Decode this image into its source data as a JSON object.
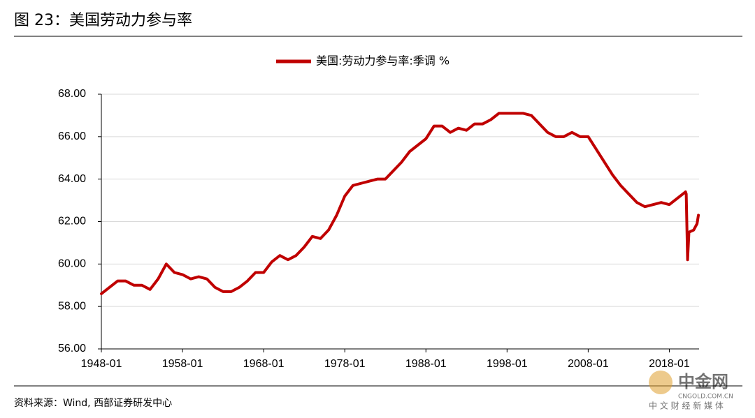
{
  "header": {
    "title": "图 23：美国劳动力参与率"
  },
  "chart_data": {
    "type": "line",
    "x": [
      "1948-01",
      "1949-01",
      "1950-01",
      "1951-01",
      "1952-01",
      "1953-01",
      "1954-01",
      "1955-01",
      "1956-01",
      "1957-01",
      "1958-01",
      "1959-01",
      "1960-01",
      "1961-01",
      "1962-01",
      "1963-01",
      "1964-01",
      "1965-01",
      "1966-01",
      "1967-01",
      "1968-01",
      "1969-01",
      "1970-01",
      "1971-01",
      "1972-01",
      "1973-01",
      "1974-01",
      "1975-01",
      "1976-01",
      "1977-01",
      "1978-01",
      "1979-01",
      "1980-01",
      "1981-01",
      "1982-01",
      "1983-01",
      "1984-01",
      "1985-01",
      "1986-01",
      "1987-01",
      "1988-01",
      "1989-01",
      "1990-01",
      "1991-01",
      "1992-01",
      "1993-01",
      "1994-01",
      "1995-01",
      "1996-01",
      "1997-01",
      "1998-01",
      "1999-01",
      "2000-01",
      "2001-01",
      "2002-01",
      "2003-01",
      "2004-01",
      "2005-01",
      "2006-01",
      "2007-01",
      "2008-01",
      "2009-01",
      "2010-01",
      "2011-01",
      "2012-01",
      "2013-01",
      "2014-01",
      "2015-01",
      "2016-01",
      "2017-01",
      "2018-01",
      "2019-01",
      "2020-01",
      "2020-02",
      "2020-04",
      "2020-06",
      "2021-01",
      "2021-06",
      "2021-08"
    ],
    "series": [
      {
        "name": "美国:劳动力参与率:季调 %",
        "color": "#c00000",
        "values": [
          58.6,
          58.9,
          59.2,
          59.2,
          59.0,
          59.0,
          58.8,
          59.3,
          60.0,
          59.6,
          59.5,
          59.3,
          59.4,
          59.3,
          58.9,
          58.7,
          58.7,
          58.9,
          59.2,
          59.6,
          59.6,
          60.1,
          60.4,
          60.2,
          60.4,
          60.8,
          61.3,
          61.2,
          61.6,
          62.3,
          63.2,
          63.7,
          63.8,
          63.9,
          64.0,
          64.0,
          64.4,
          64.8,
          65.3,
          65.6,
          65.9,
          66.5,
          66.5,
          66.2,
          66.4,
          66.3,
          66.6,
          66.6,
          66.8,
          67.1,
          67.1,
          67.1,
          67.1,
          67.0,
          66.6,
          66.2,
          66.0,
          66.0,
          66.2,
          66.0,
          66.0,
          65.4,
          64.8,
          64.2,
          63.7,
          63.3,
          62.9,
          62.7,
          62.8,
          62.9,
          62.8,
          63.1,
          63.4,
          63.3,
          60.2,
          61.5,
          61.6,
          61.9,
          62.3
        ]
      }
    ],
    "xlim": [
      "1948-01",
      "2021-09"
    ],
    "xticks": [
      "1948-01",
      "1958-01",
      "1968-01",
      "1978-01",
      "1988-01",
      "1998-01",
      "2008-01",
      "2018-01"
    ],
    "ylim": [
      56,
      68
    ],
    "yticks": [
      {
        "value": 56,
        "label": "56.00"
      },
      {
        "value": 58,
        "label": "58.00"
      },
      {
        "value": 60,
        "label": "60.00"
      },
      {
        "value": 62,
        "label": "62.00"
      },
      {
        "value": 64,
        "label": "64.00"
      },
      {
        "value": 66,
        "label": "66.00"
      },
      {
        "value": 68,
        "label": "68.00"
      }
    ],
    "grid": true,
    "legend": "top"
  },
  "source": "资料来源：Wind, 西部证券研发中心",
  "watermark": {
    "name": "中金网",
    "domain": "CNGOLD.COM.CN",
    "slogan": "中 文 财 经 新 媒 体"
  }
}
